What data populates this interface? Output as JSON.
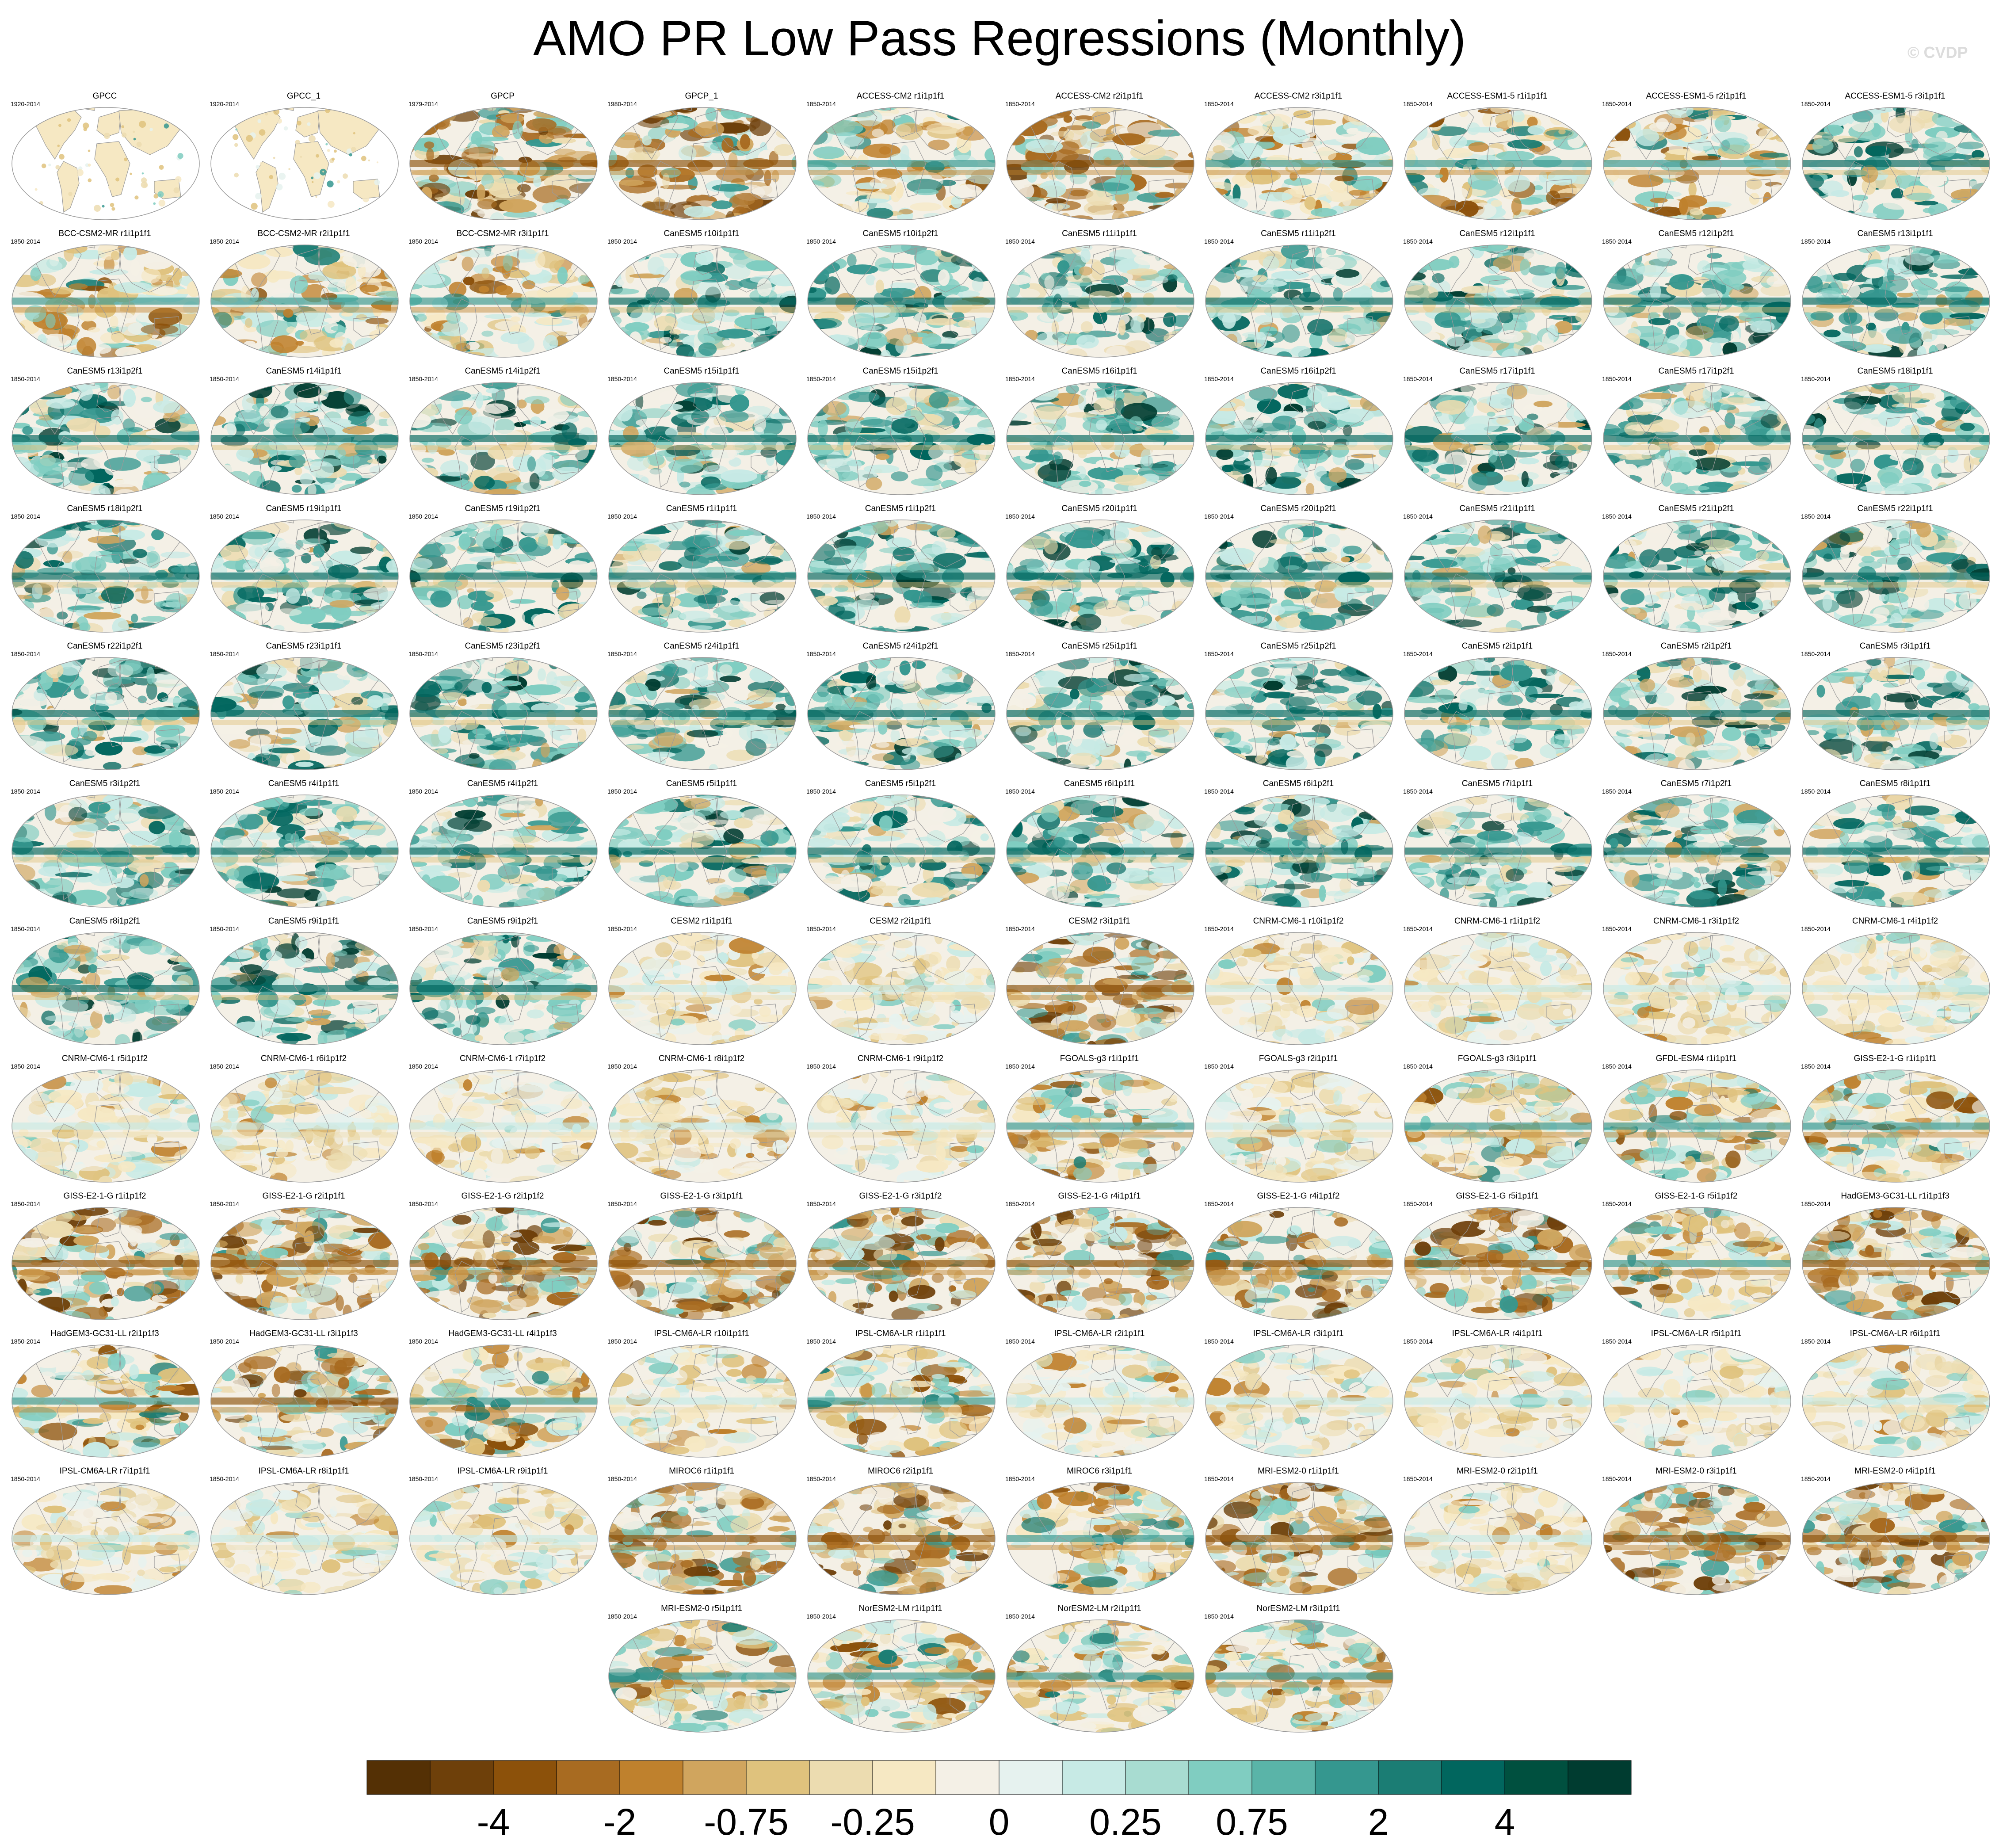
{
  "title": "AMO PR Low Pass Regressions (Monthly)",
  "watermark": "© CVDP",
  "panels": [
    {
      "name": "GPCC",
      "years": "1920-2014",
      "pattern": "obs"
    },
    {
      "name": "GPCC_1",
      "years": "1920-2014",
      "pattern": "obs"
    },
    {
      "name": "GPCP",
      "years": "1979-2014",
      "pattern": "brownish"
    },
    {
      "name": "GPCP_1",
      "years": "1980-2014",
      "pattern": "brownish"
    },
    {
      "name": "ACCESS-CM2 r1i1p1f1",
      "years": "1850-2014",
      "pattern": "mixed"
    },
    {
      "name": "ACCESS-CM2 r2i1p1f1",
      "years": "1850-2014",
      "pattern": "brownish"
    },
    {
      "name": "ACCESS-CM2 r3i1p1f1",
      "years": "1850-2014",
      "pattern": "mixed"
    },
    {
      "name": "ACCESS-ESM1-5 r1i1p1f1",
      "years": "1850-2014",
      "pattern": "mixed"
    },
    {
      "name": "ACCESS-ESM1-5 r2i1p1f1",
      "years": "1850-2014",
      "pattern": "mixed"
    },
    {
      "name": "ACCESS-ESM1-5 r3i1p1f1",
      "years": "1850-2014",
      "pattern": "teal"
    },
    {
      "name": "BCC-CSM2-MR r1i1p1f1",
      "years": "1850-2014",
      "pattern": "mixed"
    },
    {
      "name": "BCC-CSM2-MR r2i1p1f1",
      "years": "1850-2014",
      "pattern": "mixed"
    },
    {
      "name": "BCC-CSM2-MR r3i1p1f1",
      "years": "1850-2014",
      "pattern": "mixed"
    },
    {
      "name": "CanESM5 r10i1p1f1",
      "years": "1850-2014",
      "pattern": "teal"
    },
    {
      "name": "CanESM5 r10i1p2f1",
      "years": "1850-2014",
      "pattern": "teal"
    },
    {
      "name": "CanESM5 r11i1p1f1",
      "years": "1850-2014",
      "pattern": "teal"
    },
    {
      "name": "CanESM5 r11i1p2f1",
      "years": "1850-2014",
      "pattern": "teal"
    },
    {
      "name": "CanESM5 r12i1p1f1",
      "years": "1850-2014",
      "pattern": "teal"
    },
    {
      "name": "CanESM5 r12i1p2f1",
      "years": "1850-2014",
      "pattern": "teal"
    },
    {
      "name": "CanESM5 r13i1p1f1",
      "years": "1850-2014",
      "pattern": "teal"
    },
    {
      "name": "CanESM5 r13i1p2f1",
      "years": "1850-2014",
      "pattern": "teal"
    },
    {
      "name": "CanESM5 r14i1p1f1",
      "years": "1850-2014",
      "pattern": "teal"
    },
    {
      "name": "CanESM5 r14i1p2f1",
      "years": "1850-2014",
      "pattern": "teal"
    },
    {
      "name": "CanESM5 r15i1p1f1",
      "years": "1850-2014",
      "pattern": "teal"
    },
    {
      "name": "CanESM5 r15i1p2f1",
      "years": "1850-2014",
      "pattern": "teal"
    },
    {
      "name": "CanESM5 r16i1p1f1",
      "years": "1850-2014",
      "pattern": "teal"
    },
    {
      "name": "CanESM5 r16i1p2f1",
      "years": "1850-2014",
      "pattern": "teal"
    },
    {
      "name": "CanESM5 r17i1p1f1",
      "years": "1850-2014",
      "pattern": "teal"
    },
    {
      "name": "CanESM5 r17i1p2f1",
      "years": "1850-2014",
      "pattern": "teal"
    },
    {
      "name": "CanESM5 r18i1p1f1",
      "years": "1850-2014",
      "pattern": "teal"
    },
    {
      "name": "CanESM5 r18i1p2f1",
      "years": "1850-2014",
      "pattern": "teal"
    },
    {
      "name": "CanESM5 r19i1p1f1",
      "years": "1850-2014",
      "pattern": "teal"
    },
    {
      "name": "CanESM5 r19i1p2f1",
      "years": "1850-2014",
      "pattern": "teal"
    },
    {
      "name": "CanESM5 r1i1p1f1",
      "years": "1850-2014",
      "pattern": "teal"
    },
    {
      "name": "CanESM5 r1i1p2f1",
      "years": "1850-2014",
      "pattern": "teal"
    },
    {
      "name": "CanESM5 r20i1p1f1",
      "years": "1850-2014",
      "pattern": "teal"
    },
    {
      "name": "CanESM5 r20i1p2f1",
      "years": "1850-2014",
      "pattern": "teal"
    },
    {
      "name": "CanESM5 r21i1p1f1",
      "years": "1850-2014",
      "pattern": "teal"
    },
    {
      "name": "CanESM5 r21i1p2f1",
      "years": "1850-2014",
      "pattern": "teal"
    },
    {
      "name": "CanESM5 r22i1p1f1",
      "years": "1850-2014",
      "pattern": "teal"
    },
    {
      "name": "CanESM5 r22i1p2f1",
      "years": "1850-2014",
      "pattern": "teal"
    },
    {
      "name": "CanESM5 r23i1p1f1",
      "years": "1850-2014",
      "pattern": "teal"
    },
    {
      "name": "CanESM5 r23i1p2f1",
      "years": "1850-2014",
      "pattern": "teal"
    },
    {
      "name": "CanESM5 r24i1p1f1",
      "years": "1850-2014",
      "pattern": "teal"
    },
    {
      "name": "CanESM5 r24i1p2f1",
      "years": "1850-2014",
      "pattern": "teal"
    },
    {
      "name": "CanESM5 r25i1p1f1",
      "years": "1850-2014",
      "pattern": "teal"
    },
    {
      "name": "CanESM5 r25i1p2f1",
      "years": "1850-2014",
      "pattern": "teal"
    },
    {
      "name": "CanESM5 r2i1p1f1",
      "years": "1850-2014",
      "pattern": "teal"
    },
    {
      "name": "CanESM5 r2i1p2f1",
      "years": "1850-2014",
      "pattern": "teal"
    },
    {
      "name": "CanESM5 r3i1p1f1",
      "years": "1850-2014",
      "pattern": "teal"
    },
    {
      "name": "CanESM5 r3i1p2f1",
      "years": "1850-2014",
      "pattern": "teal"
    },
    {
      "name": "CanESM5 r4i1p1f1",
      "years": "1850-2014",
      "pattern": "teal"
    },
    {
      "name": "CanESM5 r4i1p2f1",
      "years": "1850-2014",
      "pattern": "teal"
    },
    {
      "name": "CanESM5 r5i1p1f1",
      "years": "1850-2014",
      "pattern": "teal"
    },
    {
      "name": "CanESM5 r5i1p2f1",
      "years": "1850-2014",
      "pattern": "teal"
    },
    {
      "name": "CanESM5 r6i1p1f1",
      "years": "1850-2014",
      "pattern": "teal"
    },
    {
      "name": "CanESM5 r6i1p2f1",
      "years": "1850-2014",
      "pattern": "teal"
    },
    {
      "name": "CanESM5 r7i1p1f1",
      "years": "1850-2014",
      "pattern": "teal"
    },
    {
      "name": "CanESM5 r7i1p2f1",
      "years": "1850-2014",
      "pattern": "teal"
    },
    {
      "name": "CanESM5 r8i1p1f1",
      "years": "1850-2014",
      "pattern": "teal"
    },
    {
      "name": "CanESM5 r8i1p2f1",
      "years": "1850-2014",
      "pattern": "teal"
    },
    {
      "name": "CanESM5 r9i1p1f1",
      "years": "1850-2014",
      "pattern": "teal"
    },
    {
      "name": "CanESM5 r9i1p2f1",
      "years": "1850-2014",
      "pattern": "teal"
    },
    {
      "name": "CESM2 r1i1p1f1",
      "years": "1850-2014",
      "pattern": "pale"
    },
    {
      "name": "CESM2 r2i1p1f1",
      "years": "1850-2014",
      "pattern": "pale"
    },
    {
      "name": "CESM2 r3i1p1f1",
      "years": "1850-2014",
      "pattern": "brownish"
    },
    {
      "name": "CNRM-CM6-1 r10i1p1f2",
      "years": "1850-2014",
      "pattern": "pale"
    },
    {
      "name": "CNRM-CM6-1 r1i1p1f2",
      "years": "1850-2014",
      "pattern": "pale"
    },
    {
      "name": "CNRM-CM6-1 r3i1p1f2",
      "years": "1850-2014",
      "pattern": "pale"
    },
    {
      "name": "CNRM-CM6-1 r4i1p1f2",
      "years": "1850-2014",
      "pattern": "pale"
    },
    {
      "name": "CNRM-CM6-1 r5i1p1f2",
      "years": "1850-2014",
      "pattern": "pale"
    },
    {
      "name": "CNRM-CM6-1 r6i1p1f2",
      "years": "1850-2014",
      "pattern": "pale"
    },
    {
      "name": "CNRM-CM6-1 r7i1p1f2",
      "years": "1850-2014",
      "pattern": "pale"
    },
    {
      "name": "CNRM-CM6-1 r8i1p1f2",
      "years": "1850-2014",
      "pattern": "pale"
    },
    {
      "name": "CNRM-CM6-1 r9i1p1f2",
      "years": "1850-2014",
      "pattern": "pale"
    },
    {
      "name": "FGOALS-g3 r1i1p1f1",
      "years": "1850-2014",
      "pattern": "mixed"
    },
    {
      "name": "FGOALS-g3 r2i1p1f1",
      "years": "1850-2014",
      "pattern": "pale"
    },
    {
      "name": "FGOALS-g3 r3i1p1f1",
      "years": "1850-2014",
      "pattern": "mixed"
    },
    {
      "name": "GFDL-ESM4 r1i1p1f1",
      "years": "1850-2014",
      "pattern": "mixed"
    },
    {
      "name": "GISS-E2-1-G r1i1p1f1",
      "years": "1850-2014",
      "pattern": "mixed"
    },
    {
      "name": "GISS-E2-1-G r1i1p1f2",
      "years": "1850-2014",
      "pattern": "brownish"
    },
    {
      "name": "GISS-E2-1-G r2i1p1f1",
      "years": "1850-2014",
      "pattern": "brownish"
    },
    {
      "name": "GISS-E2-1-G r2i1p1f2",
      "years": "1850-2014",
      "pattern": "brownish"
    },
    {
      "name": "GISS-E2-1-G r3i1p1f1",
      "years": "1850-2014",
      "pattern": "brownish"
    },
    {
      "name": "GISS-E2-1-G r3i1p1f2",
      "years": "1850-2014",
      "pattern": "brownish"
    },
    {
      "name": "GISS-E2-1-G r4i1p1f1",
      "years": "1850-2014",
      "pattern": "brownish"
    },
    {
      "name": "GISS-E2-1-G r4i1p1f2",
      "years": "1850-2014",
      "pattern": "brownish"
    },
    {
      "name": "GISS-E2-1-G r5i1p1f1",
      "years": "1850-2014",
      "pattern": "brownish"
    },
    {
      "name": "GISS-E2-1-G r5i1p1f2",
      "years": "1850-2014",
      "pattern": "mixed"
    },
    {
      "name": "HadGEM3-GC31-LL r1i1p1f3",
      "years": "1850-2014",
      "pattern": "brownish"
    },
    {
      "name": "HadGEM3-GC31-LL r2i1p1f3",
      "years": "1850-2014",
      "pattern": "mixed"
    },
    {
      "name": "HadGEM3-GC31-LL r3i1p1f3",
      "years": "1850-2014",
      "pattern": "brownish"
    },
    {
      "name": "HadGEM3-GC31-LL r4i1p1f3",
      "years": "1850-2014",
      "pattern": "mixed"
    },
    {
      "name": "IPSL-CM6A-LR r10i1p1f1",
      "years": "1850-2014",
      "pattern": "pale"
    },
    {
      "name": "IPSL-CM6A-LR r1i1p1f1",
      "years": "1850-2014",
      "pattern": "mixed"
    },
    {
      "name": "IPSL-CM6A-LR r2i1p1f1",
      "years": "1850-2014",
      "pattern": "pale"
    },
    {
      "name": "IPSL-CM6A-LR r3i1p1f1",
      "years": "1850-2014",
      "pattern": "pale"
    },
    {
      "name": "IPSL-CM6A-LR r4i1p1f1",
      "years": "1850-2014",
      "pattern": "pale"
    },
    {
      "name": "IPSL-CM6A-LR r5i1p1f1",
      "years": "1850-2014",
      "pattern": "pale"
    },
    {
      "name": "IPSL-CM6A-LR r6i1p1f1",
      "years": "1850-2014",
      "pattern": "pale"
    },
    {
      "name": "IPSL-CM6A-LR r7i1p1f1",
      "years": "1850-2014",
      "pattern": "pale"
    },
    {
      "name": "IPSL-CM6A-LR r8i1p1f1",
      "years": "1850-2014",
      "pattern": "pale"
    },
    {
      "name": "IPSL-CM6A-LR r9i1p1f1",
      "years": "1850-2014",
      "pattern": "pale"
    },
    {
      "name": "MIROC6 r1i1p1f1",
      "years": "1850-2014",
      "pattern": "brownish"
    },
    {
      "name": "MIROC6 r2i1p1f1",
      "years": "1850-2014",
      "pattern": "brownish"
    },
    {
      "name": "MIROC6 r3i1p1f1",
      "years": "1850-2014",
      "pattern": "mixed"
    },
    {
      "name": "MRI-ESM2-0 r1i1p1f1",
      "years": "1850-2014",
      "pattern": "brownish"
    },
    {
      "name": "MRI-ESM2-0 r2i1p1f1",
      "years": "1850-2014",
      "pattern": "pale"
    },
    {
      "name": "MRI-ESM2-0 r3i1p1f1",
      "years": "1850-2014",
      "pattern": "brownish"
    },
    {
      "name": "MRI-ESM2-0 r4i1p1f1",
      "years": "1850-2014",
      "pattern": "brownish"
    },
    {
      "name": "MRI-ESM2-0 r5i1p1f1",
      "years": "1850-2014",
      "pattern": "mixed"
    },
    {
      "name": "NorESM2-LM r1i1p1f1",
      "years": "1850-2014",
      "pattern": "mixed"
    },
    {
      "name": "NorESM2-LM r2i1p1f1",
      "years": "1850-2014",
      "pattern": "mixed"
    },
    {
      "name": "NorESM2-LM r3i1p1f1",
      "years": "1850-2014",
      "pattern": "mixed"
    }
  ],
  "colorbar": {
    "colors": [
      "#543005",
      "#6e400a",
      "#8c510a",
      "#a86b21",
      "#bf812d",
      "#d0a55e",
      "#dfc27d",
      "#ecdcb0",
      "#f6e8c3",
      "#f4f0e6",
      "#e6f2ef",
      "#c7eae5",
      "#a8dcd1",
      "#80cdc1",
      "#5ab4a8",
      "#35978f",
      "#1b7d74",
      "#01665e",
      "#00503f",
      "#003c30"
    ],
    "tick_labels": [
      "-4",
      "-2",
      "-0.75",
      "-0.25",
      "0",
      "0.25",
      "0.75",
      "2",
      "4"
    ],
    "tick_boundaries": [
      2,
      4,
      6,
      8,
      10,
      12,
      14,
      16,
      18
    ]
  }
}
